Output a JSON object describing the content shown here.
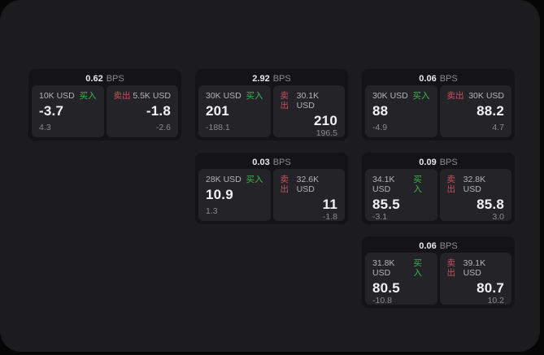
{
  "unit_label": "BPS",
  "side_labels": {
    "buy": "买入",
    "sell": "卖出"
  },
  "colors": {
    "outer_bg": "#060606",
    "page_bg": "#1c1c1e",
    "card_bg": "#141416",
    "panel_bg": "#242428",
    "buy_green": "#3db54f",
    "sell_red": "#c84f5e",
    "value_white": "#f2f2f3",
    "header_white": "#e9e9ea",
    "label": "#b4b4b6",
    "muted": "#8b8b8d"
  },
  "cards": [
    {
      "bps": "0.62",
      "buy": {
        "amount": "10K USD",
        "value": "-3.7",
        "change": "4.3"
      },
      "sell": {
        "amount": "5.5K USD",
        "value": "-1.8",
        "change": "-2.6"
      }
    },
    {
      "bps": "2.92",
      "buy": {
        "amount": "30K USD",
        "value": "201",
        "change": "-188.1"
      },
      "sell": {
        "amount": "30.1K USD",
        "value": "210",
        "change": "196.5"
      }
    },
    {
      "bps": "0.06",
      "buy": {
        "amount": "30K USD",
        "value": "88",
        "change": "-4.9"
      },
      "sell": {
        "amount": "30K USD",
        "value": "88.2",
        "change": "4.7"
      }
    },
    {
      "bps": "0.03",
      "buy": {
        "amount": "28K USD",
        "value": "10.9",
        "change": "1.3"
      },
      "sell": {
        "amount": "32.6K USD",
        "value": "11",
        "change": "-1.8"
      }
    },
    {
      "bps": "0.09",
      "buy": {
        "amount": "34.1K USD",
        "value": "85.5",
        "change": "-3.1"
      },
      "sell": {
        "amount": "32.8K USD",
        "value": "85.8",
        "change": "3.0"
      }
    },
    {
      "bps": "0.06",
      "buy": {
        "amount": "31.8K USD",
        "value": "80.5",
        "change": "-10.8"
      },
      "sell": {
        "amount": "39.1K USD",
        "value": "80.7",
        "change": "10.2"
      }
    }
  ]
}
